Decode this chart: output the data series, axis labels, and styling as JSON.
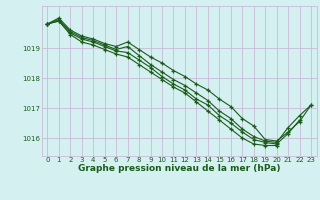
{
  "bg_color": "#d4f0f0",
  "grid_color": "#c8bcd8",
  "line_color": "#1a5c1a",
  "xlabel": "Graphe pression niveau de la mer (hPa)",
  "xlabel_color": "#1a5c1a",
  "ylim": [
    1015.4,
    1020.4
  ],
  "xlim": [
    -0.5,
    23.5
  ],
  "yticks": [
    1016,
    1017,
    1018,
    1019
  ],
  "xticks": [
    0,
    1,
    2,
    3,
    4,
    5,
    6,
    7,
    8,
    9,
    10,
    11,
    12,
    13,
    14,
    15,
    16,
    17,
    18,
    19,
    20,
    21,
    22,
    23
  ],
  "series": [
    [
      1019.8,
      1020.0,
      1019.6,
      1019.4,
      1019.3,
      1019.15,
      1019.05,
      1019.2,
      1018.95,
      1018.7,
      1018.5,
      1018.25,
      1018.05,
      1017.8,
      1017.6,
      1017.3,
      1017.05,
      1016.65,
      1016.4,
      1015.95,
      1015.9,
      1016.2,
      1016.55,
      1017.1
    ],
    [
      1019.8,
      1019.95,
      1019.55,
      1019.35,
      1019.25,
      1019.1,
      1018.95,
      1019.05,
      1018.75,
      1018.45,
      1018.2,
      1017.95,
      1017.75,
      1017.5,
      1017.25,
      1016.9,
      1016.65,
      1016.3,
      1016.05,
      1015.9,
      1015.85,
      1016.35,
      1016.75,
      1017.1
    ],
    [
      1019.8,
      1019.9,
      1019.5,
      1019.3,
      1019.2,
      1019.05,
      1018.9,
      1018.85,
      1018.6,
      1018.35,
      1018.05,
      1017.8,
      1017.6,
      1017.3,
      1017.1,
      1016.75,
      1016.5,
      1016.2,
      1015.95,
      1015.85,
      1015.8,
      1016.15,
      1016.6,
      null
    ],
    [
      1019.8,
      1019.9,
      1019.45,
      1019.2,
      1019.1,
      1018.95,
      1018.8,
      1018.7,
      1018.45,
      1018.2,
      1017.95,
      1017.7,
      1017.5,
      1017.2,
      1016.9,
      1016.6,
      1016.3,
      1016.0,
      1015.8,
      1015.75,
      1015.75,
      null,
      null,
      null
    ]
  ],
  "tick_fontsize": 5.0,
  "xlabel_fontsize": 6.5,
  "figsize": [
    3.2,
    2.0
  ],
  "dpi": 100
}
